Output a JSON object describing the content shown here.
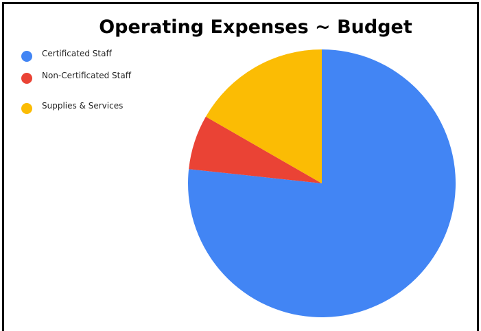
{
  "chart_data": {
    "type": "pie",
    "title": "Operating Expenses ~ Budget",
    "legend_position": "left",
    "slices": [
      {
        "label": "Certificated Staff",
        "value": 76.7,
        "color": "#4285F4"
      },
      {
        "label": "Non-Certificated Staff",
        "value": 6.6,
        "color": "#EA4335"
      },
      {
        "label": "Supplies & Services",
        "value": 16.7,
        "color": "#FBBC04"
      }
    ]
  }
}
